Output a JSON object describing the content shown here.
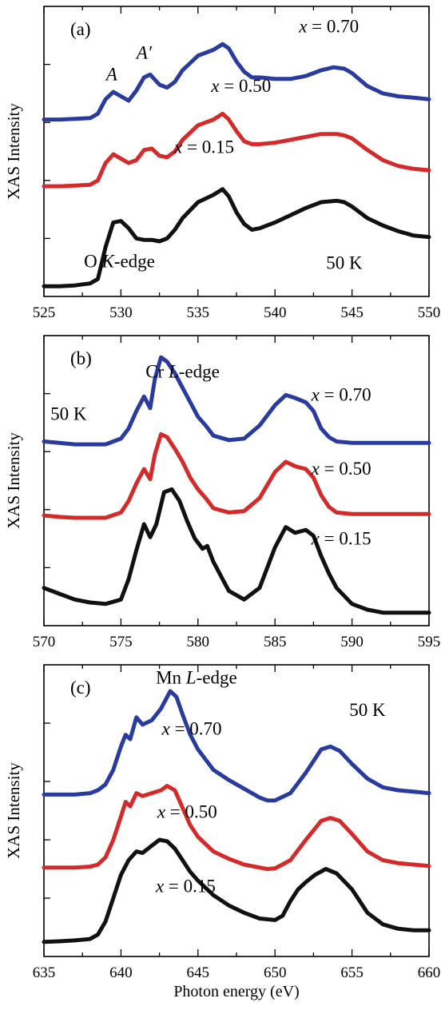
{
  "chart_data": [
    {
      "type": "line",
      "panel_label": "(a)",
      "edge_label": {
        "pre": "O ",
        "italic": "K",
        "post": "-edge"
      },
      "temperature": "50 K",
      "ylabel": "XAS Intensity",
      "xlabel": "",
      "xlim": [
        525,
        550
      ],
      "ylim": [
        0,
        10
      ],
      "xticks": [
        525,
        530,
        535,
        540,
        545,
        550
      ],
      "x_tick_labels": [
        "525",
        "530",
        "535",
        "540",
        "545",
        "550"
      ],
      "peak_labels": [
        {
          "text": "A",
          "x": 529.4,
          "y": 7.45
        },
        {
          "text": "A′",
          "x": 531.5,
          "y": 8.2
        }
      ],
      "series": [
        {
          "name": "x = 0.70",
          "color": "#2a3ba0",
          "label_x": 543.5,
          "label_y": 9.1,
          "x": [
            525,
            526,
            527,
            528,
            528.5,
            529,
            529.5,
            530,
            530.5,
            531,
            531.5,
            531.9,
            532.5,
            533,
            533.5,
            534,
            535,
            536,
            536.6,
            537,
            537.5,
            538,
            538.5,
            539,
            540,
            541,
            542,
            543,
            543.8,
            544.5,
            545,
            546,
            547,
            548,
            549,
            550
          ],
          "y": [
            6.1,
            6.1,
            6.12,
            6.15,
            6.3,
            6.8,
            7.05,
            6.9,
            6.75,
            7.1,
            7.55,
            7.65,
            7.3,
            7.2,
            7.4,
            7.8,
            8.3,
            8.5,
            8.7,
            8.55,
            8.1,
            7.75,
            7.55,
            7.55,
            7.5,
            7.5,
            7.6,
            7.8,
            7.9,
            7.85,
            7.7,
            7.25,
            7.0,
            6.9,
            6.85,
            6.8
          ]
        },
        {
          "name": "x = 0.50",
          "color": "#d42a2a",
          "label_x": 537.8,
          "label_y": 7.05,
          "x": [
            525,
            526,
            527,
            528,
            528.5,
            529,
            529.5,
            530,
            530.5,
            531,
            531.5,
            532,
            532.5,
            533,
            533.5,
            534,
            535,
            536,
            536.6,
            537,
            537.5,
            538,
            538.5,
            539,
            540,
            541,
            542,
            543,
            544,
            544.5,
            545,
            546,
            547,
            548,
            549,
            550
          ],
          "y": [
            3.8,
            3.8,
            3.82,
            3.85,
            4.0,
            4.6,
            4.9,
            4.75,
            4.6,
            4.7,
            5.05,
            5.1,
            4.85,
            4.8,
            5.0,
            5.4,
            5.9,
            6.1,
            6.3,
            6.1,
            5.7,
            5.35,
            5.25,
            5.25,
            5.3,
            5.4,
            5.5,
            5.6,
            5.6,
            5.55,
            5.45,
            5.05,
            4.7,
            4.5,
            4.4,
            4.35
          ]
        },
        {
          "name": "x = 0.15",
          "color": "#111111",
          "label_x": 535.4,
          "label_y": 4.95,
          "x": [
            525,
            526,
            527,
            528,
            528.5,
            529,
            529.5,
            530,
            530.5,
            531,
            531.5,
            532,
            532.5,
            533,
            533.5,
            534,
            535,
            536,
            536.6,
            537,
            537.5,
            538,
            538.5,
            539,
            540,
            541,
            542,
            543,
            544,
            544.5,
            545,
            546,
            547,
            548,
            549,
            550
          ],
          "y": [
            0.35,
            0.35,
            0.38,
            0.45,
            0.6,
            1.7,
            2.55,
            2.6,
            2.35,
            2.0,
            1.95,
            1.95,
            1.9,
            2.0,
            2.3,
            2.7,
            3.25,
            3.5,
            3.7,
            3.45,
            2.9,
            2.5,
            2.3,
            2.35,
            2.55,
            2.8,
            3.05,
            3.25,
            3.3,
            3.25,
            3.1,
            2.7,
            2.45,
            2.25,
            2.1,
            2.05
          ]
        }
      ]
    },
    {
      "type": "line",
      "panel_label": "(b)",
      "edge_label": {
        "pre": "Cr ",
        "italic": "L",
        "post": "-edge"
      },
      "temperature": "50 K",
      "ylabel": "XAS Intensity",
      "xlabel": "",
      "xlim": [
        570,
        595
      ],
      "ylim": [
        0,
        10
      ],
      "xticks": [
        570,
        575,
        580,
        585,
        590,
        595
      ],
      "x_tick_labels": [
        "570",
        "575",
        "580",
        "585",
        "590",
        "595"
      ],
      "peak_labels": [],
      "series": [
        {
          "name": "x = 0.70",
          "color": "#2a3ba0",
          "label_x": 589.3,
          "label_y": 7.75,
          "x": [
            570,
            571,
            572,
            573,
            574,
            575,
            575.5,
            576,
            576.5,
            576.9,
            577.2,
            577.6,
            578,
            578.5,
            579,
            579.5,
            580,
            580.5,
            581,
            582,
            583,
            584,
            585,
            585.7,
            586.3,
            587,
            587.5,
            588,
            588.5,
            589,
            590,
            591,
            592,
            593,
            594,
            595
          ],
          "y": [
            6.35,
            6.3,
            6.25,
            6.25,
            6.25,
            6.45,
            6.8,
            7.4,
            7.9,
            7.5,
            8.5,
            9.25,
            9.1,
            8.7,
            8.2,
            7.7,
            7.2,
            6.9,
            6.55,
            6.4,
            6.45,
            6.9,
            7.6,
            7.95,
            7.85,
            7.7,
            7.4,
            6.8,
            6.5,
            6.35,
            6.3,
            6.3,
            6.3,
            6.3,
            6.3,
            6.3
          ]
        },
        {
          "name": "x = 0.50",
          "color": "#d42a2a",
          "label_x": 589.3,
          "label_y": 5.2,
          "x": [
            570,
            571,
            572,
            573,
            574,
            575,
            575.5,
            576,
            576.5,
            576.9,
            577.2,
            577.6,
            578,
            578.5,
            579,
            579.5,
            580,
            580.5,
            581,
            582,
            583,
            584,
            585,
            585.7,
            586.3,
            587,
            587.5,
            588,
            588.5,
            589,
            590,
            591,
            592,
            593,
            594,
            595
          ],
          "y": [
            3.8,
            3.75,
            3.72,
            3.72,
            3.72,
            3.9,
            4.3,
            4.9,
            5.4,
            5.05,
            5.9,
            6.6,
            6.5,
            6.1,
            5.65,
            5.1,
            4.7,
            4.4,
            4.05,
            3.9,
            3.95,
            4.4,
            5.3,
            5.65,
            5.5,
            5.4,
            5.1,
            4.5,
            4.1,
            3.9,
            3.85,
            3.85,
            3.85,
            3.85,
            3.85,
            3.85
          ]
        },
        {
          "name": "x = 0.15",
          "color": "#111111",
          "label_x": 589.3,
          "label_y": 2.8,
          "x": [
            570,
            571,
            572,
            573,
            574,
            575,
            575.5,
            576,
            576.5,
            576.9,
            577.3,
            577.8,
            578.3,
            578.8,
            579.3,
            579.8,
            580.3,
            580.6,
            581,
            582,
            583,
            584,
            585,
            585.7,
            586.3,
            587,
            587.5,
            588,
            588.5,
            589,
            590,
            591,
            592,
            593,
            594,
            595
          ],
          "y": [
            1.3,
            1.1,
            0.9,
            0.8,
            0.75,
            0.9,
            1.6,
            2.6,
            3.5,
            3.05,
            3.5,
            4.6,
            4.7,
            4.3,
            3.6,
            3.0,
            2.65,
            2.75,
            2.2,
            1.2,
            0.9,
            1.3,
            2.7,
            3.4,
            3.2,
            3.3,
            3.1,
            2.4,
            1.8,
            1.3,
            0.75,
            0.55,
            0.45,
            0.45,
            0.45,
            0.45
          ]
        }
      ]
    },
    {
      "type": "line",
      "panel_label": "(c)",
      "edge_label": {
        "pre": "Mn ",
        "italic": "L",
        "post": "-edge"
      },
      "temperature": "50 K",
      "ylabel": "XAS Intensity",
      "xlabel": "Photon energy (eV)",
      "xlim": [
        635,
        660
      ],
      "ylim": [
        0,
        10
      ],
      "xticks": [
        635,
        640,
        645,
        650,
        655,
        660
      ],
      "x_tick_labels": [
        "635",
        "640",
        "645",
        "650",
        "655",
        "660"
      ],
      "peak_labels": [],
      "series": [
        {
          "name": "x = 0.70",
          "color": "#2a3ba0",
          "label_x": 644.6,
          "label_y": 7.6,
          "x": [
            635,
            636,
            637,
            638,
            638.5,
            639,
            639.5,
            640,
            640.3,
            640.6,
            641,
            641.4,
            642,
            642.6,
            643.2,
            643.6,
            644,
            644.5,
            645,
            646,
            647,
            648,
            649,
            649.5,
            650,
            651,
            652,
            653,
            653.6,
            654.2,
            655,
            656,
            657,
            658,
            659,
            660
          ],
          "y": [
            5.55,
            5.55,
            5.55,
            5.6,
            5.7,
            5.9,
            6.4,
            7.2,
            7.6,
            7.45,
            8.2,
            7.95,
            8.1,
            8.5,
            9.1,
            8.9,
            8.3,
            7.6,
            7.1,
            6.4,
            6.05,
            5.75,
            5.45,
            5.35,
            5.35,
            5.6,
            6.3,
            7.1,
            7.2,
            7.05,
            6.6,
            6.1,
            5.8,
            5.7,
            5.65,
            5.6
          ]
        },
        {
          "name": "x = 0.50",
          "color": "#d42a2a",
          "label_x": 644.3,
          "label_y": 4.75,
          "x": [
            635,
            636,
            637,
            638,
            638.5,
            639,
            639.5,
            640,
            640.3,
            640.6,
            641,
            641.4,
            642,
            642.6,
            643,
            643.5,
            644,
            644.5,
            645,
            646,
            647,
            648,
            649,
            649.5,
            650,
            651,
            652,
            653,
            653.6,
            654.2,
            655,
            656,
            657,
            658,
            659,
            660
          ],
          "y": [
            3.05,
            3.05,
            3.05,
            3.08,
            3.15,
            3.4,
            4.0,
            4.8,
            5.3,
            5.15,
            5.6,
            5.5,
            5.6,
            5.7,
            5.85,
            5.7,
            5.1,
            4.5,
            4.1,
            3.6,
            3.35,
            3.15,
            3.05,
            3.0,
            3.02,
            3.3,
            4.0,
            4.65,
            4.75,
            4.65,
            4.2,
            3.6,
            3.3,
            3.2,
            3.15,
            3.1
          ]
        },
        {
          "name": "x = 0.15",
          "color": "#111111",
          "label_x": 644.2,
          "label_y": 2.2,
          "x": [
            635,
            636,
            637,
            638,
            638.5,
            639,
            639.5,
            640,
            640.5,
            641,
            641.4,
            642,
            642.5,
            643,
            643.5,
            644,
            644.5,
            645,
            646,
            647,
            648,
            649,
            650,
            650.5,
            651,
            651.5,
            652,
            652.6,
            653.3,
            654,
            655,
            656,
            657,
            658,
            659,
            660
          ],
          "y": [
            0.5,
            0.52,
            0.55,
            0.6,
            0.75,
            1.2,
            2.0,
            2.8,
            3.3,
            3.6,
            3.55,
            3.8,
            4.0,
            3.95,
            3.7,
            3.3,
            2.9,
            2.6,
            2.1,
            1.75,
            1.5,
            1.3,
            1.25,
            1.4,
            1.9,
            2.3,
            2.55,
            2.8,
            3.0,
            2.85,
            2.3,
            1.5,
            1.1,
            0.95,
            0.9,
            0.9
          ]
        }
      ]
    }
  ]
}
